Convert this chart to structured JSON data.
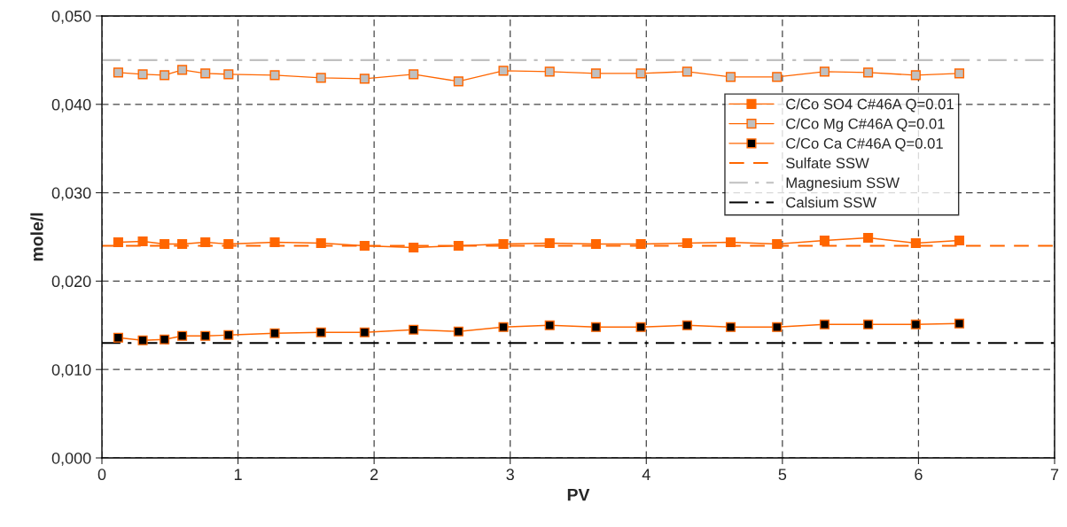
{
  "chart_data": {
    "type": "line",
    "xlabel": "PV",
    "ylabel": "mole/l",
    "x": [
      0.12,
      0.3,
      0.46,
      0.59,
      0.76,
      0.93,
      1.27,
      1.61,
      1.93,
      2.29,
      2.62,
      2.95,
      3.29,
      3.63,
      3.96,
      4.3,
      4.62,
      4.96,
      5.31,
      5.63,
      5.98,
      6.3
    ],
    "series": [
      {
        "name": "C/Co SO4 C#46A Q=0.01",
        "color": "#ff6600",
        "values": [
          0.0244,
          0.0245,
          0.0242,
          0.0242,
          0.0244,
          0.0242,
          0.0244,
          0.0243,
          0.024,
          0.0238,
          0.024,
          0.0242,
          0.0243,
          0.0242,
          0.0242,
          0.0243,
          0.0244,
          0.0242,
          0.0246,
          0.0249,
          0.0243,
          0.0246
        ]
      },
      {
        "name": "C/Co Mg C#46A Q=0.01",
        "color": "#c0c0c0",
        "values": [
          0.0436,
          0.0434,
          0.0433,
          0.0439,
          0.0435,
          0.0434,
          0.0433,
          0.043,
          0.0429,
          0.0434,
          0.0426,
          0.0438,
          0.0437,
          0.0435,
          0.0435,
          0.0437,
          0.0431,
          0.0431,
          0.0437,
          0.0436,
          0.0433,
          0.0435
        ]
      },
      {
        "name": "C/Co Ca C#46A Q=0.01",
        "color": "#000000",
        "values": [
          0.0136,
          0.0133,
          0.0134,
          0.0138,
          0.0138,
          0.0139,
          0.0141,
          0.0142,
          0.0142,
          0.0145,
          0.0143,
          0.0148,
          0.015,
          0.0148,
          0.0148,
          0.015,
          0.0148,
          0.0148,
          0.0151,
          0.0151,
          0.0151,
          0.0152
        ]
      }
    ],
    "ref_lines": [
      {
        "axis": "y",
        "value": 0.024,
        "label": "Sulfate SSW",
        "color": "#ff6600",
        "line_style": "dashed"
      },
      {
        "axis": "y",
        "value": 0.045,
        "label": "Magnesium SSW",
        "color": "#c0c0c0",
        "line_style": "dashdot"
      },
      {
        "axis": "y",
        "value": 0.013,
        "label": "Calsium SSW",
        "color": "#000000",
        "line_style": "dashdot"
      }
    ],
    "xlim": [
      0,
      7
    ],
    "xticks": [
      0,
      1,
      2,
      3,
      4,
      5,
      6,
      7
    ],
    "ylim": [
      0,
      0.05
    ],
    "yticks": [
      {
        "value": 0,
        "label": "0,000"
      },
      {
        "value": 0.01,
        "label": "0,010"
      },
      {
        "value": 0.02,
        "label": "0,020"
      },
      {
        "value": 0.03,
        "label": "0,030"
      },
      {
        "value": 0.04,
        "label": "0,040"
      },
      {
        "value": 0.05,
        "label": "0,050"
      }
    ],
    "grid": true,
    "legend": "right",
    "marker": "square",
    "line_style": "solid"
  }
}
